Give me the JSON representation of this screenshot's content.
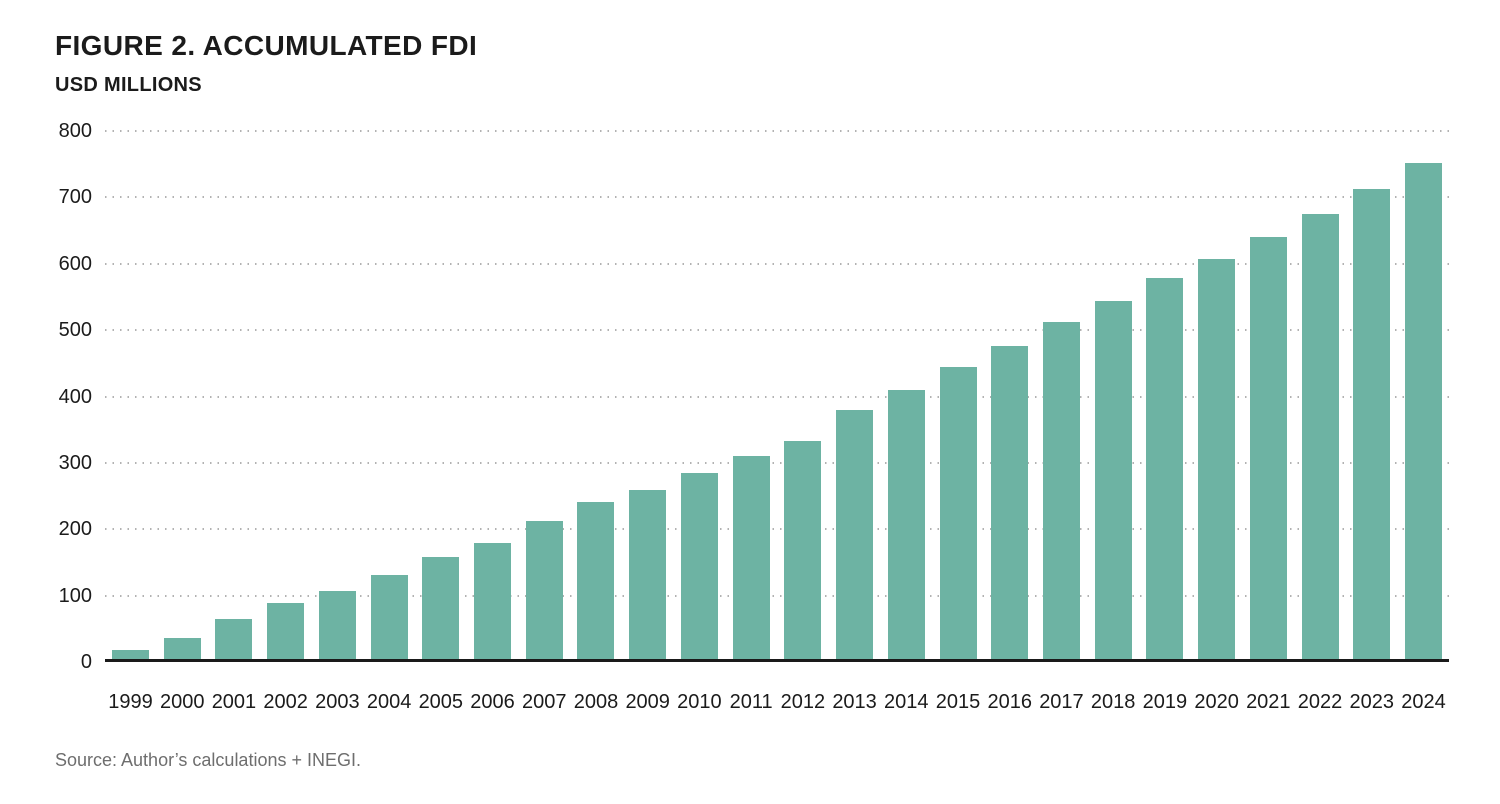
{
  "figure": {
    "title": "FIGURE 2. ACCUMULATED FDI",
    "subtitle": "USD MILLIONS",
    "source_note": "Source: Author’s calculations + INEGI."
  },
  "chart_data": {
    "type": "bar",
    "title": "FIGURE 2. ACCUMULATED FDI",
    "subtitle": "USD MILLIONS",
    "xlabel": "",
    "ylabel": "USD MILLIONS",
    "categories": [
      "1999",
      "2000",
      "2001",
      "2002",
      "2003",
      "2004",
      "2005",
      "2006",
      "2007",
      "2008",
      "2009",
      "2010",
      "2011",
      "2012",
      "2013",
      "2014",
      "2015",
      "2016",
      "2017",
      "2018",
      "2019",
      "2020",
      "2021",
      "2022",
      "2023",
      "2024"
    ],
    "values": [
      13,
      32,
      61,
      85,
      103,
      128,
      155,
      176,
      209,
      238,
      256,
      282,
      308,
      330,
      378,
      408,
      443,
      474,
      510,
      543,
      578,
      606,
      640,
      675,
      712,
      752
    ],
    "ylim": [
      0,
      800
    ],
    "yticks": [
      0,
      100,
      200,
      300,
      400,
      500,
      600,
      700,
      800
    ],
    "grid": "horizontal-dotted",
    "legend": "none",
    "bar_color": "#6db3a3",
    "axis_color": "#1a1a1a",
    "gridline_color": "#b2b2b2",
    "source_note": "Source: Author’s calculations + INEGI."
  }
}
